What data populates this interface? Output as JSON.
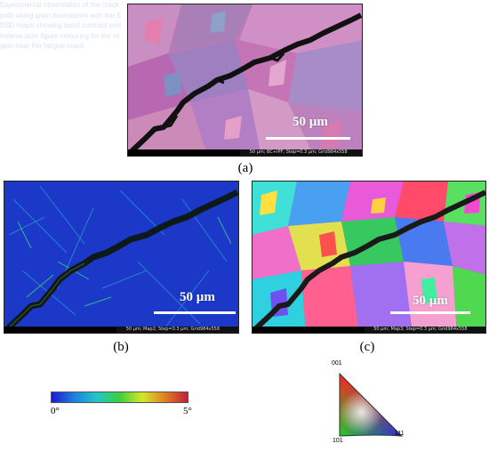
{
  "panels": {
    "a": {
      "caption": "(a)",
      "scale": "50 µm",
      "info": "50 µm; BC+IPF; Step=0.3 µm; Grid984x558"
    },
    "b": {
      "caption": "(b)",
      "scale": "50 µm",
      "info": "50 µm; Map2; Step=0.3 µm; Grid984x558"
    },
    "c": {
      "caption": "(c)",
      "scale": "50 µm",
      "info": "50 µm; Map3; Step=0.3 µm; Grid984x558"
    }
  },
  "colorbar": {
    "min_label": "0°",
    "max_label": "5°",
    "colors": [
      "#1b1bd0",
      "#1e7fe0",
      "#20c8c8",
      "#3ccf3c",
      "#d6e62a",
      "#e08020",
      "#c0203a"
    ]
  },
  "ipf": {
    "top_label": "001",
    "bottom_left_label": "101",
    "bottom_right_label": "111"
  },
  "ghost_text": "Experimental observation of the crack path along grain boundaries with the EBSD maps showing band contrast and inverse pole figure colouring for the region near the fatigue crack."
}
